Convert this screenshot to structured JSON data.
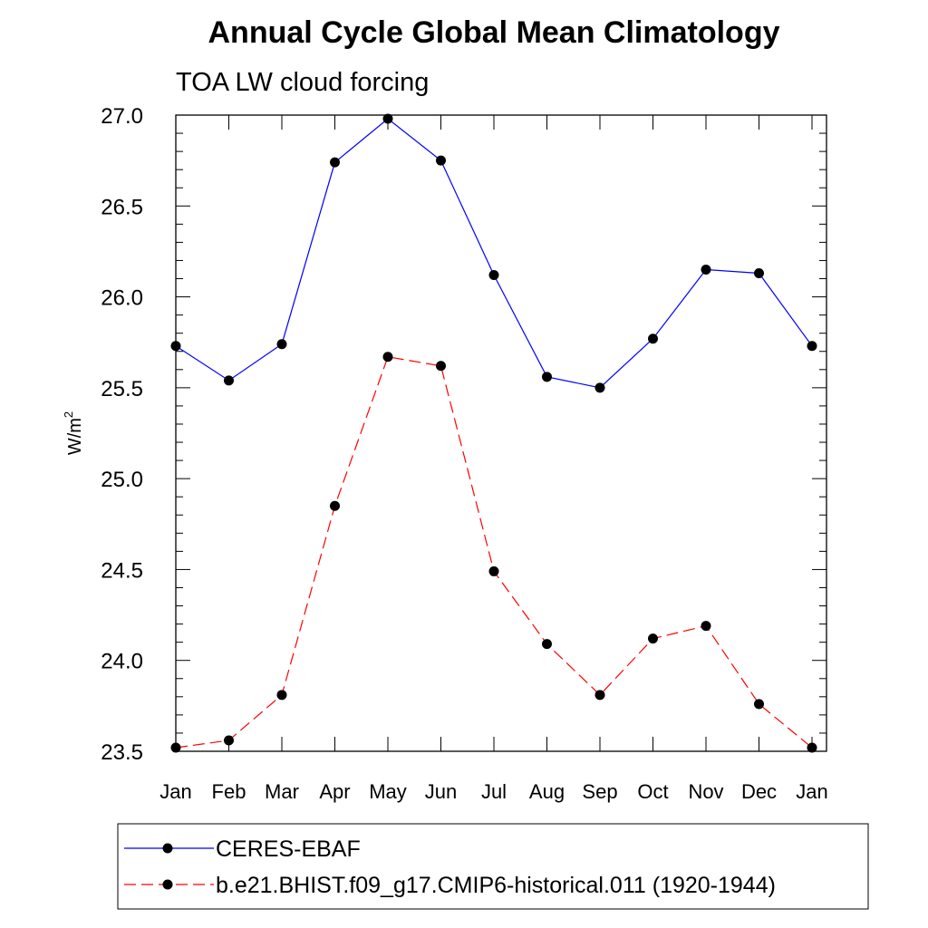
{
  "chart_data": {
    "type": "line",
    "title": "Annual Cycle Global Mean Climatology",
    "subtitle": "TOA LW cloud forcing",
    "xlabel": "",
    "ylabel": "W/m",
    "ylabel_superscript": "2",
    "categories": [
      "Jan",
      "Feb",
      "Mar",
      "Apr",
      "May",
      "Jun",
      "Jul",
      "Aug",
      "Sep",
      "Oct",
      "Nov",
      "Dec",
      "Jan"
    ],
    "ylim": [
      23.5,
      27.0
    ],
    "yticks": [
      "23.5",
      "24.0",
      "24.5",
      "25.0",
      "25.5",
      "26.0",
      "26.5",
      "27.0"
    ],
    "grid": false,
    "legend_position": "bottom",
    "series": [
      {
        "name": "CERES-EBAF",
        "color": "#0000ff",
        "dash": "solid",
        "marker": "filled-circle",
        "values": [
          25.73,
          25.54,
          25.74,
          26.74,
          26.98,
          26.75,
          26.12,
          25.56,
          25.5,
          25.77,
          26.15,
          26.13,
          25.73
        ]
      },
      {
        "name": "b.e21.BHIST.f09_g17.CMIP6-historical.011 (1920-1944)",
        "color": "#ff0000",
        "dash": "dashed",
        "marker": "filled-circle",
        "values": [
          23.52,
          23.56,
          23.81,
          24.85,
          25.67,
          25.62,
          24.49,
          24.09,
          23.81,
          24.12,
          24.19,
          23.76,
          23.52
        ]
      }
    ]
  }
}
